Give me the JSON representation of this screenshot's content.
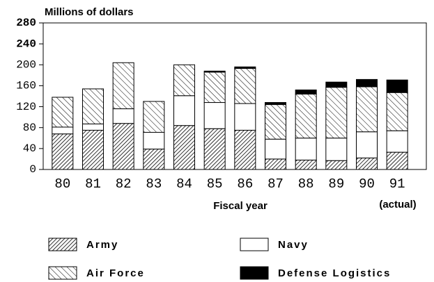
{
  "chart_data": {
    "type": "stacked-bar",
    "ylabel": "Millions of dollars",
    "xlabel": "Fiscal year",
    "annotation": "(actual)",
    "categories": [
      "80",
      "81",
      "82",
      "83",
      "84",
      "85",
      "86",
      "87",
      "88",
      "89",
      "90",
      "91"
    ],
    "series": [
      {
        "name": "Army",
        "color": "#000000",
        "pattern": "dense-hatch",
        "values": [
          68,
          75,
          88,
          39,
          84,
          78,
          75,
          20,
          18,
          17,
          22,
          33
        ]
      },
      {
        "name": "Navy",
        "color": "#ffffff",
        "pattern": "solid",
        "values": [
          13,
          12,
          28,
          32,
          57,
          50,
          51,
          38,
          42,
          43,
          50,
          41
        ]
      },
      {
        "name": "Air Force",
        "color": "#000000",
        "pattern": "hatch",
        "values": [
          57,
          67,
          88,
          59,
          59,
          58,
          67,
          66,
          84,
          97,
          86,
          73
        ]
      },
      {
        "name": "Defense Logistics",
        "color": "#000000",
        "pattern": "solid",
        "values": [
          0,
          0,
          0,
          0,
          0,
          2,
          3,
          4,
          8,
          10,
          14,
          24
        ]
      }
    ],
    "ylim": [
      0,
      280
    ],
    "yticks": [
      0,
      40,
      80,
      120,
      160,
      200,
      240,
      280
    ]
  }
}
